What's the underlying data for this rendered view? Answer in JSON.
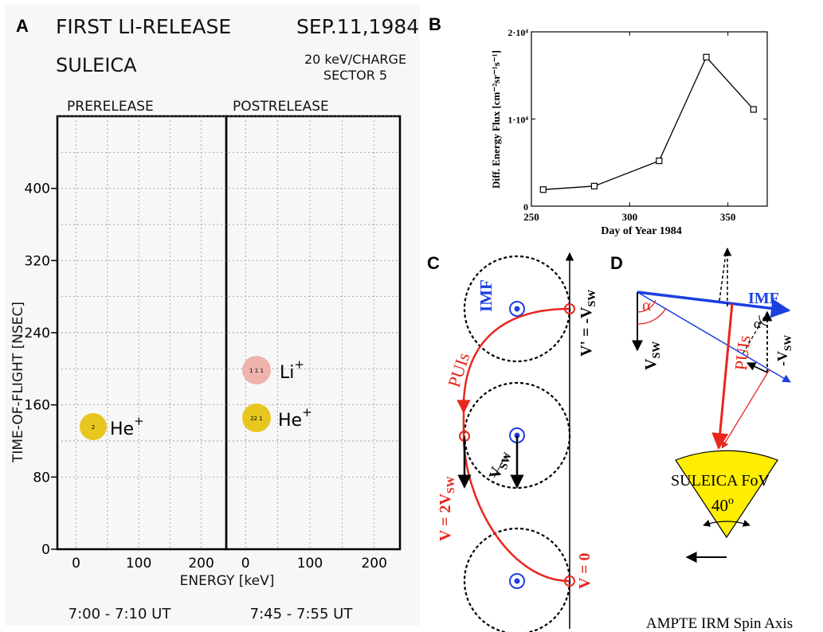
{
  "panel_letters": {
    "a": "A",
    "b": "B",
    "c": "C",
    "d": "D"
  },
  "panel_a": {
    "title": "FIRST LI-RELEASE",
    "date": "SEP.11,1984",
    "instrument": "SULEICA",
    "setting_line1": "20 keV/CHARGE",
    "setting_line2": "SECTOR 5",
    "left_header": "PRERELEASE",
    "right_header": "POSTRELEASE",
    "ylabel": "TIME-OF-FLIGHT [NSEC]",
    "xlabel": "ENERGY [keV]",
    "time_left": "7:00 - 7:10 UT",
    "time_right": "7:45 - 7:55 UT",
    "spot_count_he_pre": "2",
    "spot_count_li": "1 1 1",
    "spot_count_he_post": "22 1",
    "ion_he": "He",
    "ion_li": "Li",
    "charge": "+",
    "colors": {
      "he": "#e7c61f",
      "li": "#eeb3ad",
      "background": "#f6f6f6"
    }
  },
  "chart_data": [
    {
      "type": "scatter",
      "panel": "A",
      "title": "FIRST LI-RELEASE",
      "xlabel": "ENERGY [keV]",
      "ylabel": "TIME-OF-FLIGHT [NSEC]",
      "subplots": [
        {
          "name": "PRERELEASE",
          "xlim": [
            -30,
            240
          ],
          "x_ticks": [
            0,
            100,
            200
          ]
        },
        {
          "name": "POSTRELEASE",
          "xlim": [
            -30,
            240
          ],
          "x_ticks": [
            0,
            100,
            200
          ]
        }
      ],
      "ylim": [
        0,
        480
      ],
      "y_ticks": [
        0,
        80,
        160,
        240,
        320,
        400
      ],
      "grid": true,
      "points": [
        {
          "subplot": "PRERELEASE",
          "label": "He+",
          "x": 20,
          "y": 133
        },
        {
          "subplot": "POSTRELEASE",
          "label": "Li+",
          "x": 12,
          "y": 198
        },
        {
          "subplot": "POSTRELEASE",
          "label": "He+",
          "x": 12,
          "y": 143
        }
      ]
    },
    {
      "type": "line",
      "panel": "B",
      "xlabel": "Day of Year 1984",
      "ylabel": "Diff. Energy Flux [cm⁻²sr⁻¹s⁻¹]",
      "xlim": [
        250,
        370
      ],
      "ylim": [
        0,
        20000
      ],
      "x_ticks": [
        250,
        300,
        350
      ],
      "y_ticks": [
        0,
        10000,
        20000
      ],
      "y_tick_labels": [
        "0",
        "1·10⁴",
        "2·10⁴"
      ],
      "marker": "square",
      "x": [
        256,
        282,
        315,
        339,
        363
      ],
      "y": [
        1900,
        2300,
        5200,
        17100,
        11100
      ]
    }
  ],
  "panel_c": {
    "imf": "IMF",
    "puis": "PUIs",
    "v_prime": "V' = -V",
    "sw": "SW",
    "v_sw": "V",
    "v_two": "V = 2V",
    "v_zero": "V = 0",
    "colors": {
      "red": "#e8261d",
      "blue": "#1b3fe0"
    }
  },
  "panel_d": {
    "imf": "IMF",
    "puis": "PUIs",
    "alpha": "α",
    "v_sw": "V",
    "sw": "SW",
    "minus_v_sw": "-V",
    "fov_label": "SULEICA FoV",
    "fov_angle": "40",
    "fov_angle_unit": "o",
    "spin_axis": "AMPTE IRM Spin Axis",
    "colors": {
      "fov": "#ffee00",
      "red": "#e8261d",
      "blue": "#1b3fe0"
    }
  }
}
